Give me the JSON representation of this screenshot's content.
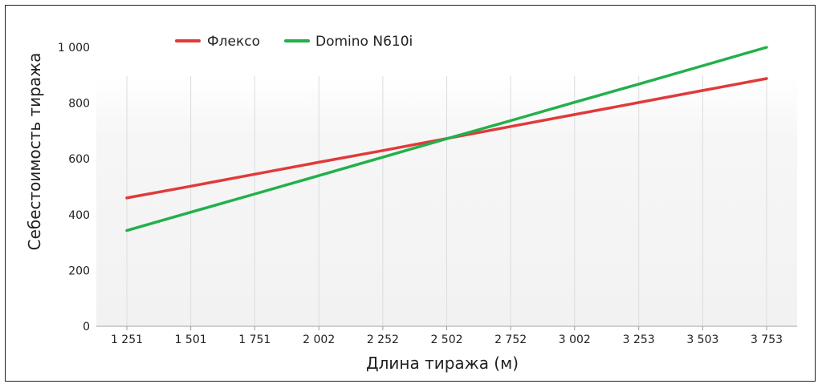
{
  "chart_data": {
    "type": "line",
    "title": "",
    "xlabel": "Длина тиража (м)",
    "ylabel": "Себестоимость тиража",
    "categories": [
      "1 251",
      "1 501",
      "1 751",
      "2 002",
      "2 252",
      "2 502",
      "2 752",
      "3 002",
      "3 253",
      "3 503",
      "3 753"
    ],
    "x": [
      1251,
      1501,
      1751,
      2002,
      2252,
      2502,
      2752,
      3002,
      3253,
      3503,
      3753
    ],
    "yticks": [
      "0",
      "200",
      "400",
      "600",
      "800",
      "1 000"
    ],
    "ytick_values": [
      0,
      200,
      400,
      600,
      800,
      1000
    ],
    "ylim": [
      0,
      1000
    ],
    "xlim": [
      1251,
      3753
    ],
    "grid": "vertical",
    "legend_position": "top-left",
    "series": [
      {
        "name": "Флексо",
        "color": "#e03a3a",
        "values": [
          460,
          502,
          545,
          588,
          630,
          673,
          716,
          759,
          802,
          845,
          888
        ]
      },
      {
        "name": "Domino N610i",
        "color": "#22b04a",
        "values": [
          343,
          409,
          474,
          540,
          606,
          672,
          737,
          803,
          868,
          934,
          1000
        ]
      }
    ]
  }
}
